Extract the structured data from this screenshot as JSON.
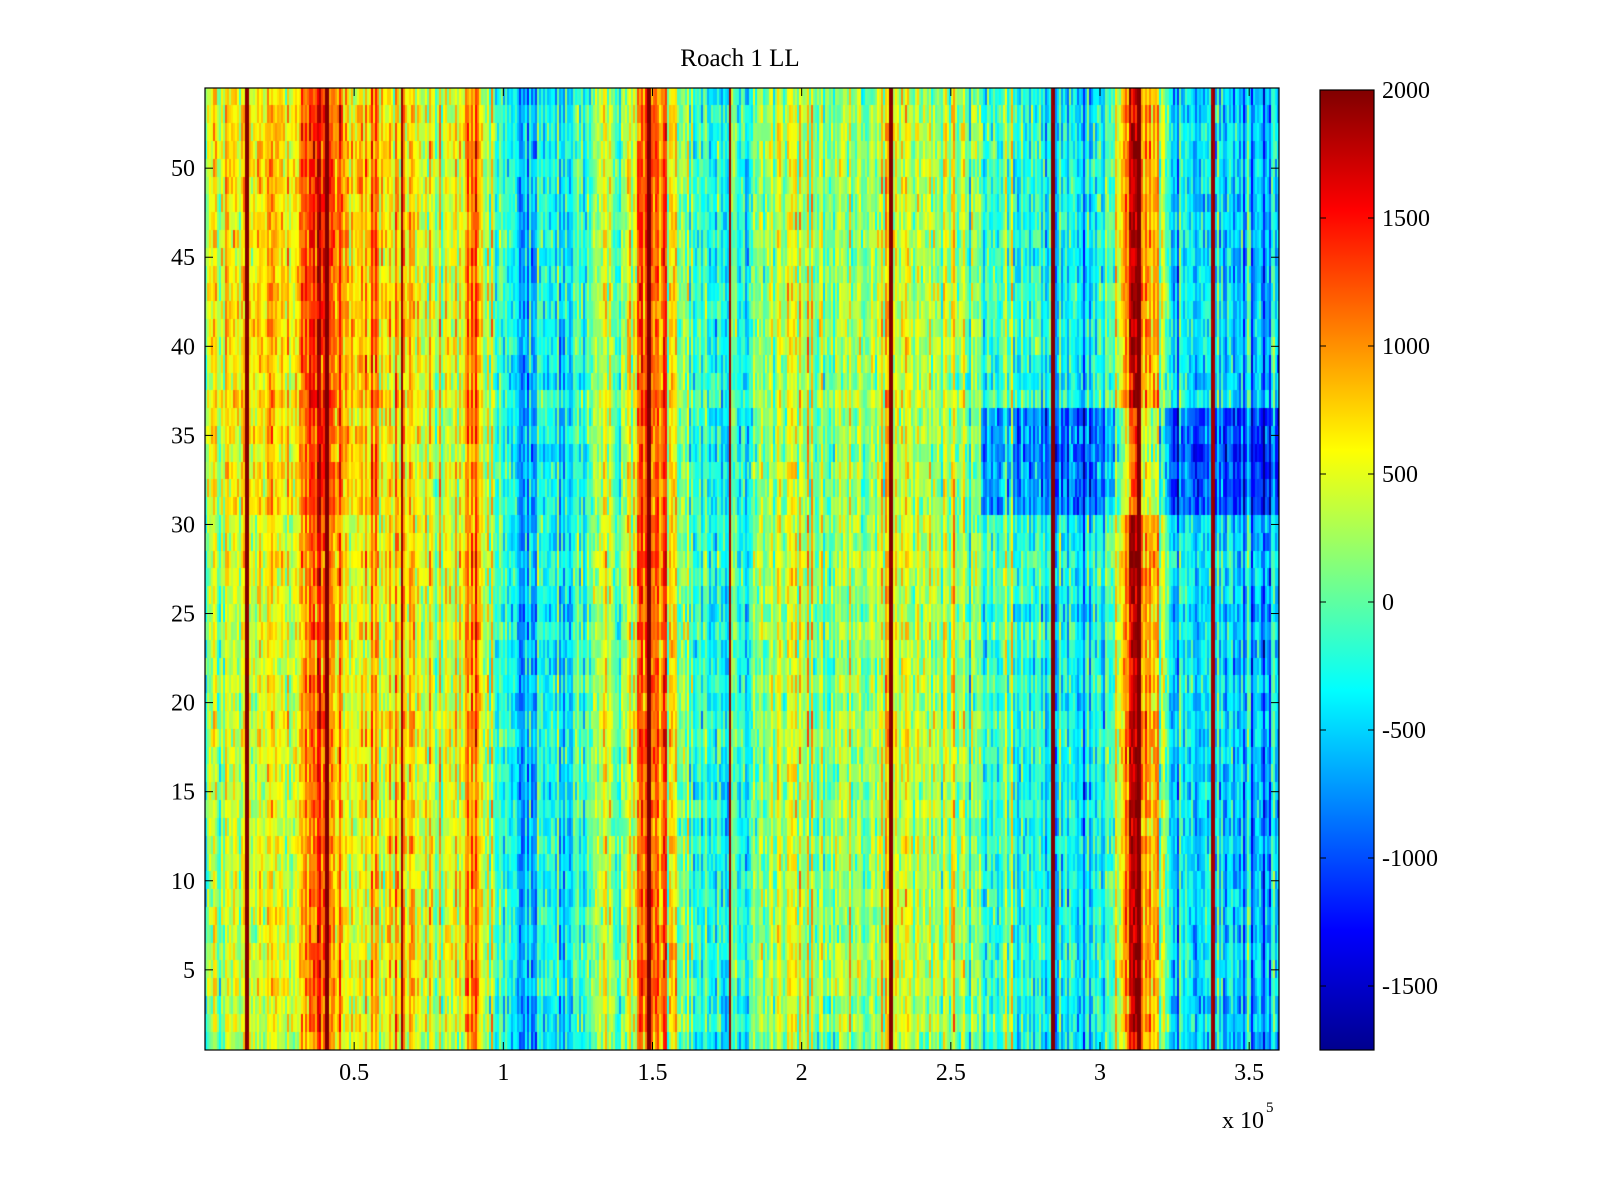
{
  "chart_data": {
    "type": "heatmap",
    "title": "Roach 1 LL",
    "xlabel": "",
    "ylabel": "",
    "x_multiplier_label": "x 10",
    "x_multiplier_exponent": "5",
    "xlim": [
      0,
      360000
    ],
    "ylim": [
      0.5,
      54.5
    ],
    "rows": 54,
    "x_ticks": [
      0.5,
      1,
      1.5,
      2,
      2.5,
      3,
      3.5
    ],
    "x_tick_labels": [
      "0.5",
      "1",
      "1.5",
      "2",
      "2.5",
      "3",
      "3.5"
    ],
    "y_ticks": [
      5,
      10,
      15,
      20,
      25,
      30,
      35,
      40,
      45,
      50
    ],
    "y_tick_labels": [
      "5",
      "10",
      "15",
      "20",
      "25",
      "30",
      "35",
      "40",
      "45",
      "50"
    ],
    "colorbar": {
      "colormap": "jet",
      "clim": [
        -1750,
        2000
      ],
      "ticks": [
        2000,
        1500,
        1000,
        500,
        0,
        -500,
        -1000,
        -1500
      ],
      "tick_labels": [
        "2000",
        "1500",
        "1000",
        "500",
        "0",
        "-500",
        "-1000",
        "-1500"
      ]
    },
    "column_profile": {
      "note": "approximate mean value per x position (x in units of 1e5), constant across rows plus noise",
      "x": [
        0.0,
        0.1,
        0.2,
        0.3,
        0.35,
        0.4,
        0.45,
        0.5,
        0.6,
        0.68,
        0.75,
        0.85,
        0.9,
        0.95,
        1.05,
        1.1,
        1.2,
        1.3,
        1.4,
        1.48,
        1.5,
        1.55,
        1.65,
        1.75,
        1.85,
        2.0,
        2.1,
        2.2,
        2.3,
        2.4,
        2.5,
        2.6,
        2.7,
        2.8,
        2.9,
        3.0,
        3.08,
        3.12,
        3.16,
        3.25,
        3.4,
        3.6
      ],
      "values": [
        150,
        300,
        400,
        700,
        1000,
        1200,
        900,
        500,
        600,
        800,
        300,
        500,
        900,
        100,
        -600,
        -500,
        -300,
        0,
        300,
        1200,
        1300,
        800,
        0,
        -300,
        200,
        400,
        100,
        300,
        600,
        200,
        300,
        0,
        -200,
        -300,
        -200,
        -300,
        900,
        1800,
        700,
        -400,
        -500,
        -500
      ]
    },
    "sharp_lines": [
      {
        "x": 0.14,
        "value": 2000
      },
      {
        "x": 0.41,
        "value": 2000
      },
      {
        "x": 0.66,
        "value": 1900
      },
      {
        "x": 1.49,
        "value": 2000
      },
      {
        "x": 1.76,
        "value": 1900
      },
      {
        "x": 2.3,
        "value": 2000
      },
      {
        "x": 2.84,
        "value": 2000
      },
      {
        "x": 3.13,
        "value": 2000
      },
      {
        "x": 3.38,
        "value": 1900
      }
    ],
    "row_bands": [
      {
        "rows": [
          31,
          36
        ],
        "x_range": [
          2.6,
          3.6
        ],
        "value_shift": -500,
        "description": "darker blue band"
      },
      {
        "rows": [
          31,
          54
        ],
        "x_range": [
          0.0,
          0.6
        ],
        "value_shift": 250,
        "description": "warmer upper-left block"
      }
    ],
    "colors": {
      "frame": "#000000",
      "background": "#ffffff"
    }
  }
}
